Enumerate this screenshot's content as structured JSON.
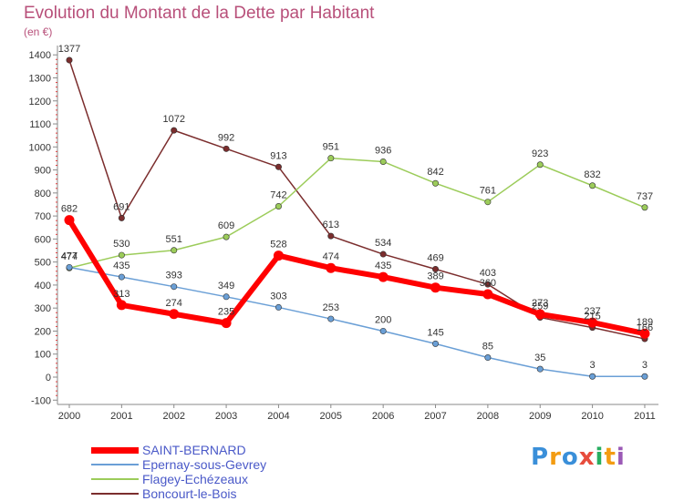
{
  "chart_data": {
    "type": "line",
    "title": "Evolution du Montant de la Dette par Habitant",
    "ylabel": "(en €)",
    "xlabel": "",
    "categories": [
      "2000",
      "2001",
      "2002",
      "2003",
      "2004",
      "2005",
      "2006",
      "2007",
      "2008",
      "2009",
      "2010",
      "2011"
    ],
    "ylim": [
      -100,
      1400
    ],
    "yticks": [
      -100,
      0,
      100,
      200,
      300,
      400,
      500,
      600,
      700,
      800,
      900,
      1000,
      1100,
      1200,
      1300,
      1400
    ],
    "grid": false,
    "series": [
      {
        "name": "SAINT-BERNARD",
        "color": "#ff0000",
        "width": 6,
        "values": [
          682,
          313,
          274,
          235,
          528,
          474,
          435,
          389,
          360,
          273,
          237,
          189
        ]
      },
      {
        "name": "Epernay-sous-Gevrey",
        "color": "#6a9fd6",
        "width": 1.5,
        "values": [
          477,
          435,
          393,
          349,
          303,
          253,
          200,
          145,
          85,
          35,
          3,
          3
        ]
      },
      {
        "name": "Flagey-Echézeaux",
        "color": "#9ccc5a",
        "width": 1.5,
        "values": [
          474,
          530,
          551,
          609,
          742,
          951,
          936,
          842,
          761,
          923,
          832,
          737
        ]
      },
      {
        "name": "Boncourt-le-Bois",
        "color": "#7b2d2d",
        "width": 1.5,
        "values": [
          1377,
          691,
          1072,
          992,
          913,
          613,
          534,
          469,
          403,
          259,
          215,
          166
        ]
      }
    ]
  },
  "logo": {
    "text": "Proxiti",
    "letters": [
      "P",
      "r",
      "o",
      "x",
      "i",
      "t",
      "i"
    ],
    "colors": [
      "#3a8fd9",
      "#f39c12",
      "#3a8fd9",
      "#e74c3c",
      "#27ae60",
      "#f39c12",
      "#9b59b6"
    ]
  }
}
